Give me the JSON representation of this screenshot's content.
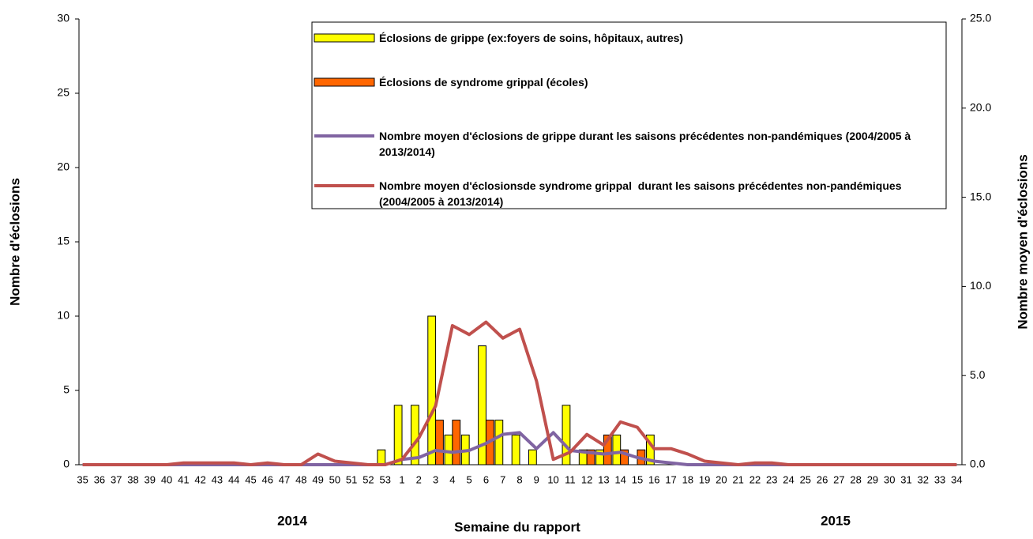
{
  "chart_data": {
    "type": "bar-line",
    "x_label": "Semaine du rapport",
    "y_label": "Nombre d'éclosions",
    "y2_label": "Nombre moyen d'éclosions",
    "annotations": [
      "2014",
      "2015"
    ],
    "categories": [
      "35",
      "36",
      "37",
      "38",
      "39",
      "40",
      "41",
      "42",
      "43",
      "44",
      "45",
      "46",
      "47",
      "48",
      "49",
      "50",
      "51",
      "52",
      "53",
      "1",
      "2",
      "3",
      "4",
      "5",
      "6",
      "7",
      "8",
      "9",
      "10",
      "11",
      "12",
      "13",
      "14",
      "15",
      "16",
      "17",
      "18",
      "19",
      "20",
      "21",
      "22",
      "23",
      "24",
      "25",
      "26",
      "27",
      "28",
      "29",
      "30",
      "31",
      "32",
      "33",
      "34"
    ],
    "ylim": [
      0,
      30
    ],
    "yticks": [
      0,
      5,
      10,
      15,
      20,
      25,
      30
    ],
    "y2lim": [
      0,
      25
    ],
    "y2ticks": [
      {
        "value": 0,
        "label": "0.0"
      },
      {
        "value": 5,
        "label": "5.0"
      },
      {
        "value": 10,
        "label": "10.0"
      },
      {
        "value": 15,
        "label": "15.0"
      },
      {
        "value": 20,
        "label": "20.0"
      },
      {
        "value": 25,
        "label": "25.0"
      }
    ],
    "series": [
      {
        "name": "Éclosions de grippe (ex:foyers de soins, hôpitaux, autres)",
        "type": "bar",
        "color": "#ffff00",
        "values": [
          0,
          0,
          0,
          0,
          0,
          0,
          0,
          0,
          0,
          0,
          0,
          0,
          0,
          0,
          0,
          0,
          0,
          0,
          1,
          4,
          4,
          10,
          2,
          2,
          8,
          3,
          2,
          1,
          0,
          4,
          1,
          1,
          2,
          0,
          2,
          0,
          0,
          0,
          0,
          0,
          0,
          0,
          0,
          0,
          0,
          0,
          0,
          0,
          0,
          0,
          0,
          0,
          0
        ]
      },
      {
        "name": "Éclosions de syndrome grippal (écoles)",
        "type": "bar",
        "color": "#ff6600",
        "values": [
          0,
          0,
          0,
          0,
          0,
          0,
          0,
          0,
          0,
          0,
          0,
          0,
          0,
          0,
          0,
          0,
          0,
          0,
          0,
          0,
          0,
          3,
          3,
          0,
          3,
          0,
          0,
          0,
          0,
          0,
          1,
          2,
          1,
          1,
          0,
          0,
          0,
          0,
          0,
          0,
          0,
          0,
          0,
          0,
          0,
          0,
          0,
          0,
          0,
          0,
          0,
          0,
          0
        ]
      },
      {
        "name": "Nombre moyen d'éclosions de grippe durant les saisons précédentes non-pandémiques (2004/2005 à 2013/2014)",
        "type": "line",
        "axis": "y2",
        "color": "#8064a2",
        "values": [
          0,
          0,
          0,
          0,
          0,
          0,
          0,
          0,
          0,
          0,
          0,
          0,
          0,
          0,
          0,
          0,
          0,
          0,
          0,
          0.3,
          0.4,
          0.8,
          0.7,
          0.8,
          1.2,
          1.7,
          1.8,
          0.9,
          1.8,
          0.8,
          0.7,
          0.6,
          0.7,
          0.4,
          0.2,
          0.1,
          0,
          0,
          0,
          0,
          0,
          0,
          0,
          0,
          0,
          0,
          0,
          0,
          0,
          0,
          0,
          0,
          0
        ]
      },
      {
        "name": "Nombre moyen d'éclosionsde syndrome grippal  durant les saisons précédentes non-pandémiques (2004/2005 à 2013/2014)",
        "type": "line",
        "axis": "y2",
        "color": "#c0504d",
        "values": [
          0,
          0,
          0,
          0,
          0,
          0,
          0.1,
          0.1,
          0.1,
          0.1,
          0,
          0.1,
          0,
          0,
          0.6,
          0.2,
          0.1,
          0,
          0,
          0.3,
          1.5,
          3.3,
          7.8,
          7.3,
          8,
          7.1,
          7.6,
          4.7,
          0.3,
          0.7,
          1.7,
          1.1,
          2.4,
          2.1,
          0.9,
          0.9,
          0.6,
          0.2,
          0.1,
          0,
          0.1,
          0.1,
          0,
          0,
          0,
          0,
          0,
          0,
          0,
          0,
          0,
          0,
          0
        ]
      }
    ]
  }
}
